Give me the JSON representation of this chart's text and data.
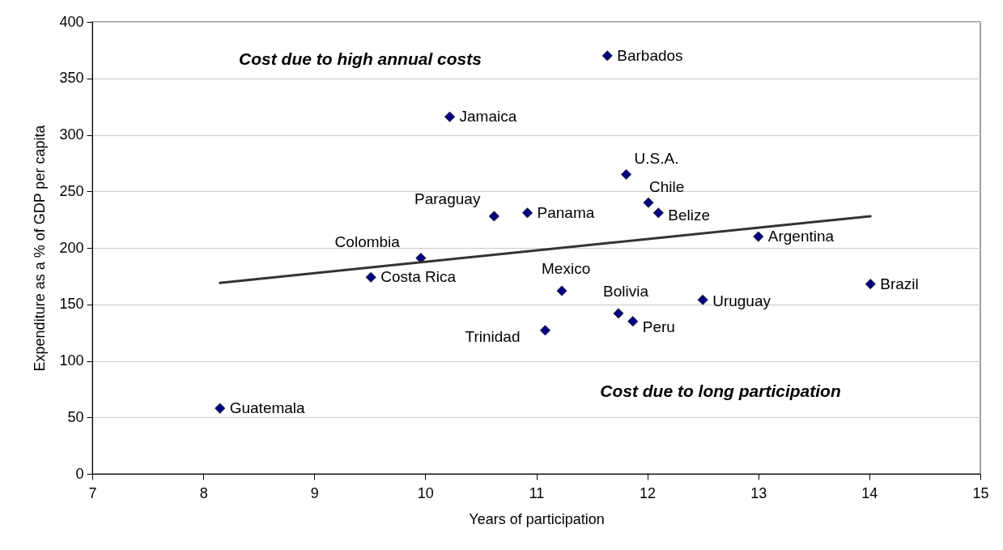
{
  "chart_data": {
    "type": "scatter",
    "xlabel": "Years of participation",
    "ylabel": "Expenditure as a % of GDP per capita",
    "xlim": [
      7,
      15
    ],
    "xticks": [
      7,
      8,
      9,
      10,
      11,
      12,
      13,
      14,
      15
    ],
    "ylim": [
      0,
      400
    ],
    "yticks": [
      0,
      50,
      100,
      150,
      200,
      250,
      300,
      350,
      400
    ],
    "grid": "y",
    "series": [
      {
        "color": "#000080",
        "marker": "diamond",
        "x": [
          11.64,
          10.22,
          11.81,
          10.62,
          10.92,
          12.01,
          12.1,
          13.0,
          9.96,
          9.51,
          11.23,
          11.74,
          11.08,
          12.5,
          11.87,
          14.01,
          8.15
        ],
        "values": [
          370,
          316,
          265,
          228,
          231,
          240,
          231,
          210,
          191,
          174,
          162,
          142,
          127,
          154,
          135,
          168,
          58
        ]
      },
      {
        "type": "line",
        "color": "#333333",
        "x": [
          8.15,
          14.01
        ],
        "values": [
          169,
          228
        ]
      }
    ],
    "annotations": [
      {
        "text": "Barbados",
        "x": 11.64,
        "y": 370
      },
      {
        "text": "Jamaica",
        "x": 10.22,
        "y": 316
      },
      {
        "text": "U.S.A.",
        "x": 11.81,
        "y": 265
      },
      {
        "text": "Paraguay",
        "x": 10.62,
        "y": 228
      },
      {
        "text": "Panama",
        "x": 10.92,
        "y": 231
      },
      {
        "text": "Chile",
        "x": 12.01,
        "y": 240
      },
      {
        "text": "Belize",
        "x": 12.1,
        "y": 231
      },
      {
        "text": "Argentina",
        "x": 13.0,
        "y": 210
      },
      {
        "text": "Colombia",
        "x": 9.96,
        "y": 191
      },
      {
        "text": "Costa Rica",
        "x": 9.51,
        "y": 174
      },
      {
        "text": "Mexico",
        "x": 11.23,
        "y": 162
      },
      {
        "text": "Bolivia",
        "x": 11.74,
        "y": 142
      },
      {
        "text": "Trinidad",
        "x": 11.08,
        "y": 127
      },
      {
        "text": "Uruguay",
        "x": 12.5,
        "y": 154
      },
      {
        "text": "Peru",
        "x": 11.87,
        "y": 135
      },
      {
        "text": "Brazil",
        "x": 14.01,
        "y": 168
      },
      {
        "text": "Guatemala",
        "x": 8.15,
        "y": 58
      },
      "Cost due to  high annual costs",
      "Cost due to long participation"
    ]
  }
}
